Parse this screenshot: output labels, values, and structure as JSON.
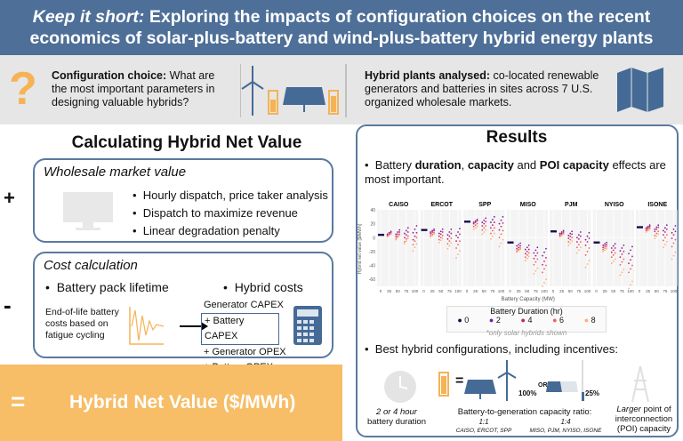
{
  "header": {
    "title_italic": "Keep it short:",
    "title_rest": " Exploring the impacts of configuration choices on the recent economics of solar-plus-battery and wind-plus-battery hybrid energy plants"
  },
  "intro": {
    "config_label": "Configuration choice:",
    "config_text": " What are the most important parameters in designing valuable hybrids?",
    "plants_label": "Hybrid plants analysed:",
    "plants_text": " co-located renewable generators and batteries in sites across 7 U.S. organized wholesale markets.",
    "icons": [
      "question-mark-icon",
      "wind-turbine-icon",
      "solar-panel-icon",
      "battery-icon",
      "map-icon"
    ]
  },
  "calc": {
    "title": "Calculating Hybrid Net Value",
    "plus_sign": "+",
    "minus_sign": "-",
    "wholesale": {
      "title": "Wholesale market value",
      "items": [
        "Hourly dispatch, price taker analysis",
        "Dispatch to maximize revenue",
        "Linear degradation penalty"
      ]
    },
    "cost": {
      "title": "Cost calculation",
      "lifetime": "Battery pack lifetime",
      "lifetime_text": "End-of-life battery costs based on fatigue cycling",
      "hybrid": "Hybrid costs",
      "items": [
        "Generator CAPEX",
        "+ Battery CAPEX",
        "+ Generator OPEX",
        "+ Battery OPEX"
      ]
    },
    "result_sign": "=",
    "result_label": "Hybrid Net Value ($/MWh)",
    "colors": {
      "accent": "#f7bd67",
      "border": "#5a7aa0"
    }
  },
  "results": {
    "title": "Results",
    "bullet1_pre": "Battery ",
    "bullet1_b1": "duration",
    "bullet1_mid1": ", ",
    "bullet1_b2": "capacity",
    "bullet1_mid2": " and ",
    "bullet1_b3": "POI capacity",
    "bullet1_post": " effects are most important.",
    "bullet2": "Best hybrid configurations, including incentives:",
    "duration_text_italic": "2 or 4 hour",
    "duration_text": "battery duration",
    "ratio_title": "Battery-to-generation capacity ratio:",
    "ratio1": "1:1",
    "ratio1_markets": "CAISO, ERCOT, SPP",
    "ratio2": "1:4",
    "ratio2_markets": "MISO, PJM, NYISO, ISONE",
    "pct100": "100%",
    "or": "OR",
    "pct25": "25%",
    "equals": "=",
    "poi_italic": "Larger",
    "poi_text": " point of interconnection (POI) capacity"
  },
  "chart_data": {
    "type": "scatter",
    "ylabel": "Hybrid net value [$/MWh]",
    "xlabel": "Battery Capacity (MW)",
    "ylim": [
      -70,
      40
    ],
    "yticks": [
      40,
      20,
      0,
      -20,
      -40,
      -60
    ],
    "xticks": [
      0,
      25,
      50,
      75,
      100
    ],
    "legend_title": "Battery Duration (hr)",
    "legend_position": "bottom",
    "note": "*only solar hybrids shown",
    "durations": [
      {
        "name": "0",
        "color": "#1b0c4a"
      },
      {
        "name": "2",
        "color": "#7a1fa0"
      },
      {
        "name": "4",
        "color": "#c4206e"
      },
      {
        "name": "6",
        "color": "#f4605a"
      },
      {
        "name": "8",
        "color": "#fdb07a"
      }
    ],
    "panels": [
      {
        "market": "CAISO",
        "base": 4,
        "series": [
          [
            7,
            8,
            10,
            12
          ],
          [
            5,
            5,
            4,
            2
          ],
          [
            4,
            2,
            -2,
            -5
          ],
          [
            3,
            0,
            -5,
            -14
          ]
        ]
      },
      {
        "market": "ERCOT",
        "base": 11,
        "series": [
          [
            10,
            9,
            8,
            8
          ],
          [
            8,
            5,
            2,
            0
          ],
          [
            5,
            0,
            -5,
            -10
          ],
          [
            3,
            -4,
            -12,
            -24
          ]
        ]
      },
      {
        "market": "SPP",
        "base": 23,
        "series": [
          [
            24,
            25,
            26,
            25
          ],
          [
            22,
            20,
            18,
            16
          ],
          [
            18,
            14,
            10,
            5
          ],
          [
            14,
            8,
            2,
            -8
          ]
        ]
      },
      {
        "market": "MISO",
        "base": -7,
        "series": [
          [
            -10,
            -14,
            -18,
            -21
          ],
          [
            -14,
            -20,
            -26,
            -34
          ],
          [
            -17,
            -25,
            -35,
            -45
          ],
          [
            -19,
            -30,
            -48,
            -65
          ]
        ]
      },
      {
        "market": "PJM",
        "base": 9,
        "series": [
          [
            8,
            6,
            4,
            2
          ],
          [
            6,
            2,
            -2,
            -6
          ],
          [
            4,
            -3,
            -10,
            -20
          ],
          [
            3,
            -8,
            -18,
            -38
          ]
        ]
      },
      {
        "market": "NYISO",
        "base": -7,
        "series": [
          [
            -9,
            -12,
            -15,
            -18
          ],
          [
            -12,
            -18,
            -24,
            -32
          ],
          [
            -15,
            -25,
            -35,
            -45
          ],
          [
            -18,
            -34,
            -50,
            -68
          ]
        ]
      },
      {
        "market": "ISONE",
        "base": 15,
        "series": [
          [
            16,
            15,
            14,
            12
          ],
          [
            14,
            12,
            8,
            4
          ],
          [
            12,
            6,
            0,
            -8
          ],
          [
            10,
            2,
            -10,
            -26
          ]
        ]
      }
    ]
  }
}
